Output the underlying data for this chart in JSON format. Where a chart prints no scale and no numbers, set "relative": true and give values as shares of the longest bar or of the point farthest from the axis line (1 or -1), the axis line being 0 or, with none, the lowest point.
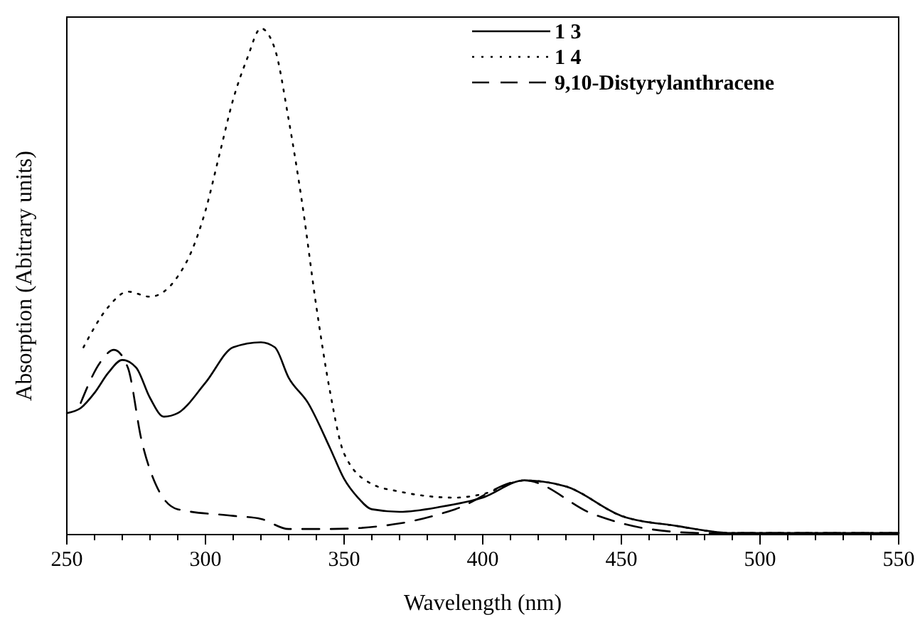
{
  "chart_data": {
    "type": "line",
    "relative": true,
    "xlabel": "Wavelength (nm)",
    "ylabel": "Absorption (Abitrary units)",
    "xlim": [
      250,
      550
    ],
    "xticks": [
      250,
      {
        "value": 260,
        "label": null
      },
      {
        "value": 270,
        "label": null
      },
      {
        "value": 280,
        "label": null
      },
      {
        "value": 290,
        "label": null
      },
      300,
      {
        "value": 310,
        "label": null
      },
      {
        "value": 320,
        "label": null
      },
      {
        "value": 330,
        "label": null
      },
      {
        "value": 340,
        "label": null
      },
      350,
      {
        "value": 360,
        "label": null
      },
      {
        "value": 370,
        "label": null
      },
      {
        "value": 380,
        "label": null
      },
      {
        "value": 390,
        "label": null
      },
      400,
      {
        "value": 410,
        "label": null
      },
      {
        "value": 420,
        "label": null
      },
      {
        "value": 430,
        "label": null
      },
      {
        "value": 440,
        "label": null
      },
      450,
      {
        "value": 460,
        "label": null
      },
      {
        "value": 470,
        "label": null
      },
      {
        "value": 480,
        "label": null
      },
      {
        "value": 490,
        "label": null
      },
      500,
      {
        "value": 510,
        "label": null
      },
      {
        "value": 520,
        "label": null
      },
      {
        "value": 530,
        "label": null
      },
      {
        "value": 540,
        "label": null
      },
      550
    ],
    "legend": "top right",
    "grid": false,
    "series": [
      {
        "name": "1 3",
        "color": "#000000",
        "line_style": "solid",
        "x": [
          250,
          255,
          260,
          265,
          270,
          275,
          280,
          285,
          290,
          300,
          310,
          320,
          325,
          330,
          337,
          345,
          350,
          355,
          360,
          370,
          385,
          400,
          415,
          430,
          450,
          470,
          490,
          520,
          550
        ],
        "values": [
          0.24,
          0.25,
          0.28,
          0.32,
          0.345,
          0.33,
          0.27,
          0.233,
          0.24,
          0.3,
          0.37,
          0.38,
          0.37,
          0.31,
          0.26,
          0.17,
          0.11,
          0.073,
          0.05,
          0.045,
          0.055,
          0.073,
          0.107,
          0.095,
          0.037,
          0.017,
          0.003,
          0.003,
          0.003
        ]
      },
      {
        "name": "1 4",
        "color": "#000000",
        "line_style": "dotted",
        "x": [
          256,
          265,
          272,
          280,
          290,
          295,
          300,
          305,
          310,
          315,
          320,
          325,
          330,
          335,
          340,
          345,
          350,
          360,
          370,
          390,
          400,
          415,
          430,
          450,
          470,
          490,
          520,
          550
        ],
        "values": [
          0.37,
          0.45,
          0.48,
          0.47,
          0.51,
          0.56,
          0.64,
          0.75,
          0.86,
          0.94,
          1.0,
          0.96,
          0.82,
          0.65,
          0.45,
          0.28,
          0.16,
          0.1,
          0.085,
          0.073,
          0.08,
          0.107,
          0.095,
          0.037,
          0.017,
          0.003,
          0.003,
          0.003
        ]
      },
      {
        "name": "9,10-Distyrylanthracene",
        "color": "#000000",
        "line_style": "dashed",
        "x": [
          255,
          262,
          267,
          272,
          277,
          282,
          290,
          310,
          320,
          330,
          345,
          370,
          390,
          415,
          440,
          460,
          480,
          520,
          550
        ],
        "values": [
          0.26,
          0.34,
          0.365,
          0.33,
          0.185,
          0.1,
          0.05,
          0.037,
          0.031,
          0.011,
          0.011,
          0.022,
          0.05,
          0.107,
          0.04,
          0.011,
          0.003,
          0.003,
          0.003
        ]
      }
    ]
  }
}
